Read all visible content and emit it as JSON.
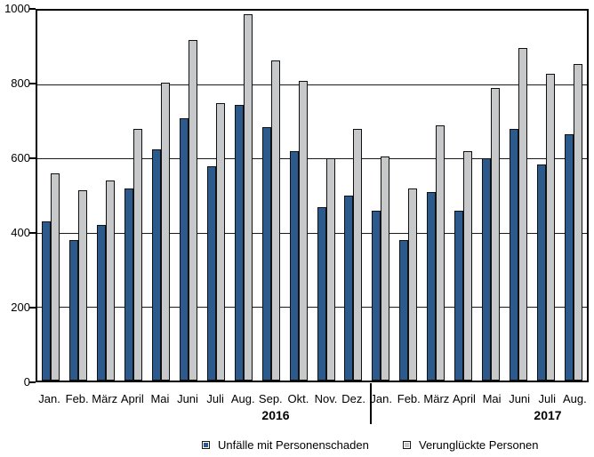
{
  "chart_data": {
    "type": "bar",
    "title": "",
    "xlabel": "",
    "ylabel": "",
    "categories": [
      "Jan.",
      "Feb.",
      "März",
      "April",
      "Mai",
      "Juni",
      "Juli",
      "Aug.",
      "Sep.",
      "Okt.",
      "Nov.",
      "Dez.",
      "Jan.",
      "Feb.",
      "März",
      "April",
      "Mai",
      "Juni",
      "Juli",
      "Aug."
    ],
    "year_groups": [
      {
        "label": "2016",
        "months": 12
      },
      {
        "label": "2017",
        "months": 8
      }
    ],
    "series": [
      {
        "name": "Unfälle mit Personenschaden",
        "color": "#2D5A8C",
        "values": [
          430,
          380,
          420,
          520,
          625,
          710,
          580,
          745,
          685,
          620,
          470,
          500,
          460,
          380,
          510,
          460,
          600,
          680,
          585,
          665
        ]
      },
      {
        "name": "Verunglückte Personen",
        "color": "#C6C8CA",
        "values": [
          560,
          515,
          540,
          680,
          805,
          920,
          750,
          990,
          865,
          810,
          600,
          680,
          605,
          520,
          690,
          620,
          790,
          900,
          830,
          855
        ]
      }
    ],
    "ylim": [
      0,
      1000
    ],
    "yticks": [
      0,
      200,
      400,
      600,
      800,
      1000
    ],
    "grid": "horizontal",
    "legend_position": "bottom",
    "bar_border_color": "#111111"
  }
}
